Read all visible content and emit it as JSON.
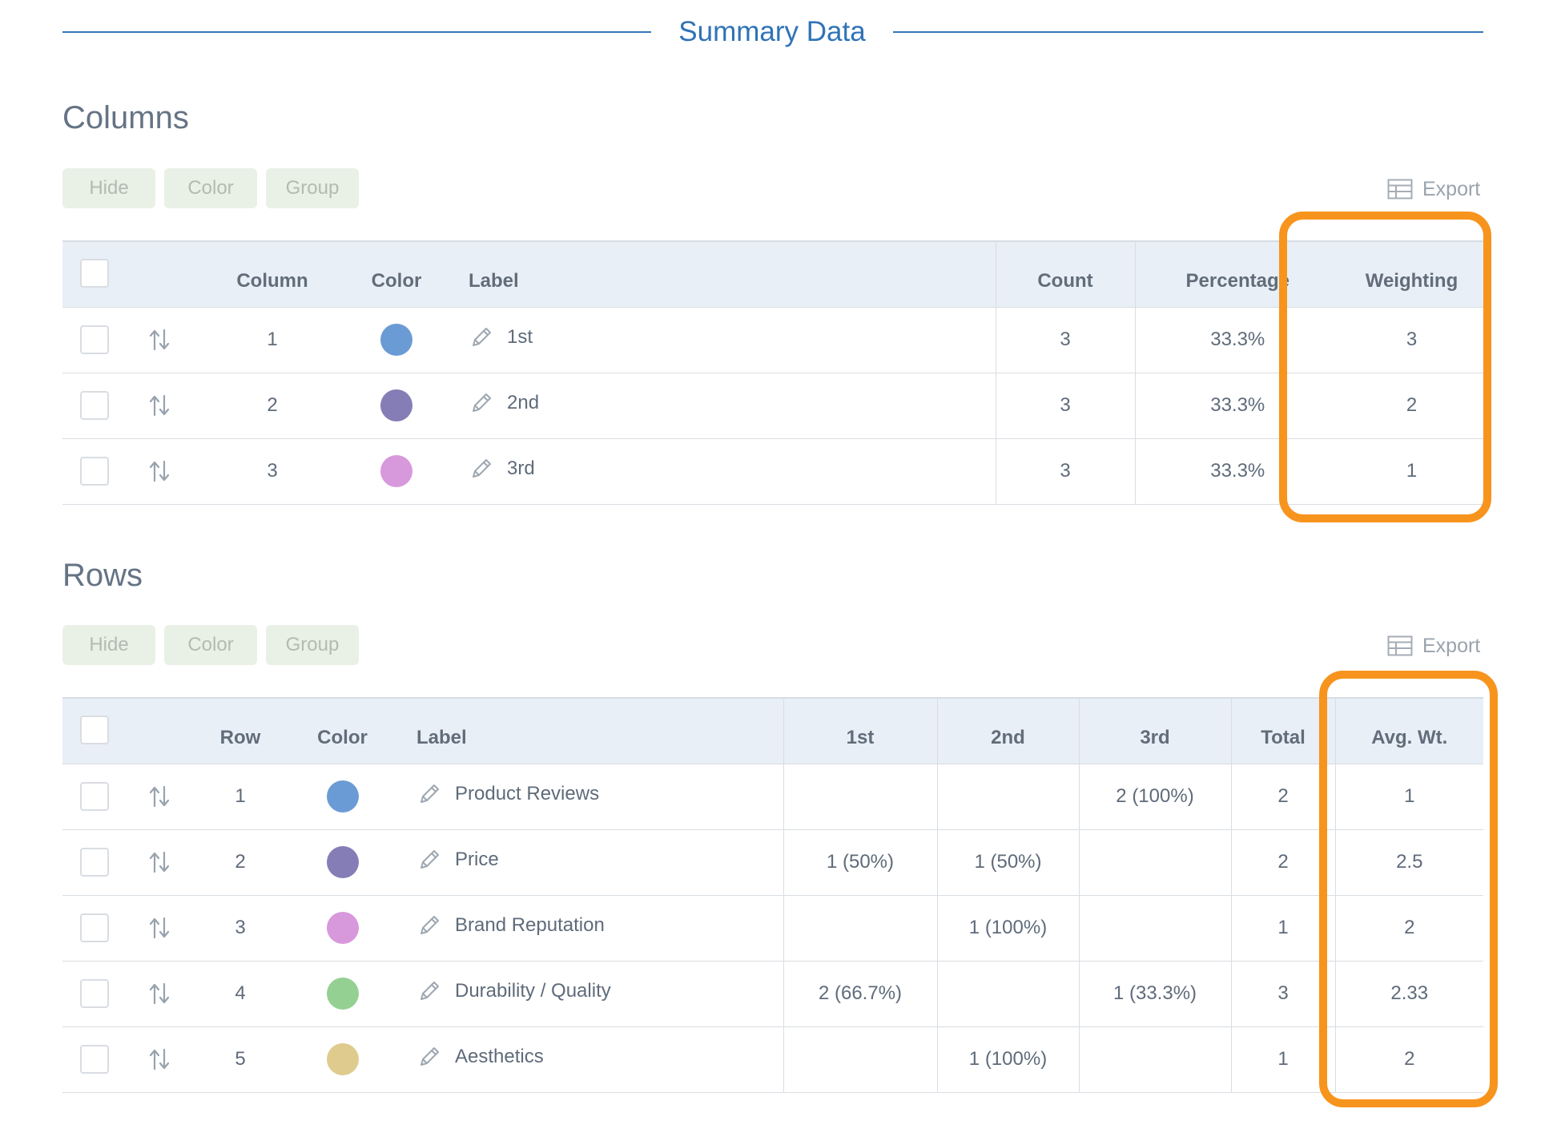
{
  "summary": {
    "title": "Summary Data"
  },
  "toolbar": {
    "hide": "Hide",
    "color": "Color",
    "group": "Group",
    "export": "Export"
  },
  "columns_section": {
    "title": "Columns",
    "headers": {
      "column": "Column",
      "color": "Color",
      "label": "Label",
      "count": "Count",
      "percentage": "Percentage",
      "weighting": "Weighting"
    },
    "rows": [
      {
        "column": "1",
        "color": "#6b9bd4",
        "label": "1st",
        "count": "3",
        "percentage": "33.3%",
        "weighting": "3"
      },
      {
        "column": "2",
        "color": "#857db6",
        "label": "2nd",
        "count": "3",
        "percentage": "33.3%",
        "weighting": "2"
      },
      {
        "column": "3",
        "color": "#d898dc",
        "label": "3rd",
        "count": "3",
        "percentage": "33.3%",
        "weighting": "1"
      }
    ]
  },
  "rows_section": {
    "title": "Rows",
    "headers": {
      "row": "Row",
      "color": "Color",
      "label": "Label",
      "first": "1st",
      "second": "2nd",
      "third": "3rd",
      "total": "Total",
      "avg": "Avg. Wt."
    },
    "rows": [
      {
        "row": "1",
        "color": "#6b9bd4",
        "label": "Product Reviews",
        "first": "",
        "second": "",
        "third": "2 (100%)",
        "total": "2",
        "avg": "1"
      },
      {
        "row": "2",
        "color": "#857db6",
        "label": "Price",
        "first": "1 (50%)",
        "second": "1 (50%)",
        "third": "",
        "total": "2",
        "avg": "2.5"
      },
      {
        "row": "3",
        "color": "#d898dc",
        "label": "Brand Reputation",
        "first": "",
        "second": "1 (100%)",
        "third": "",
        "total": "1",
        "avg": "2"
      },
      {
        "row": "4",
        "color": "#94d092",
        "label": "Durability / Quality",
        "first": "2 (66.7%)",
        "second": "",
        "third": "1 (33.3%)",
        "total": "3",
        "avg": "2.33"
      },
      {
        "row": "5",
        "color": "#dfcb8e",
        "label": "Aesthetics",
        "first": "",
        "second": "1 (100%)",
        "third": "",
        "total": "1",
        "avg": "2"
      }
    ]
  },
  "highlight_color": "#f7941d"
}
